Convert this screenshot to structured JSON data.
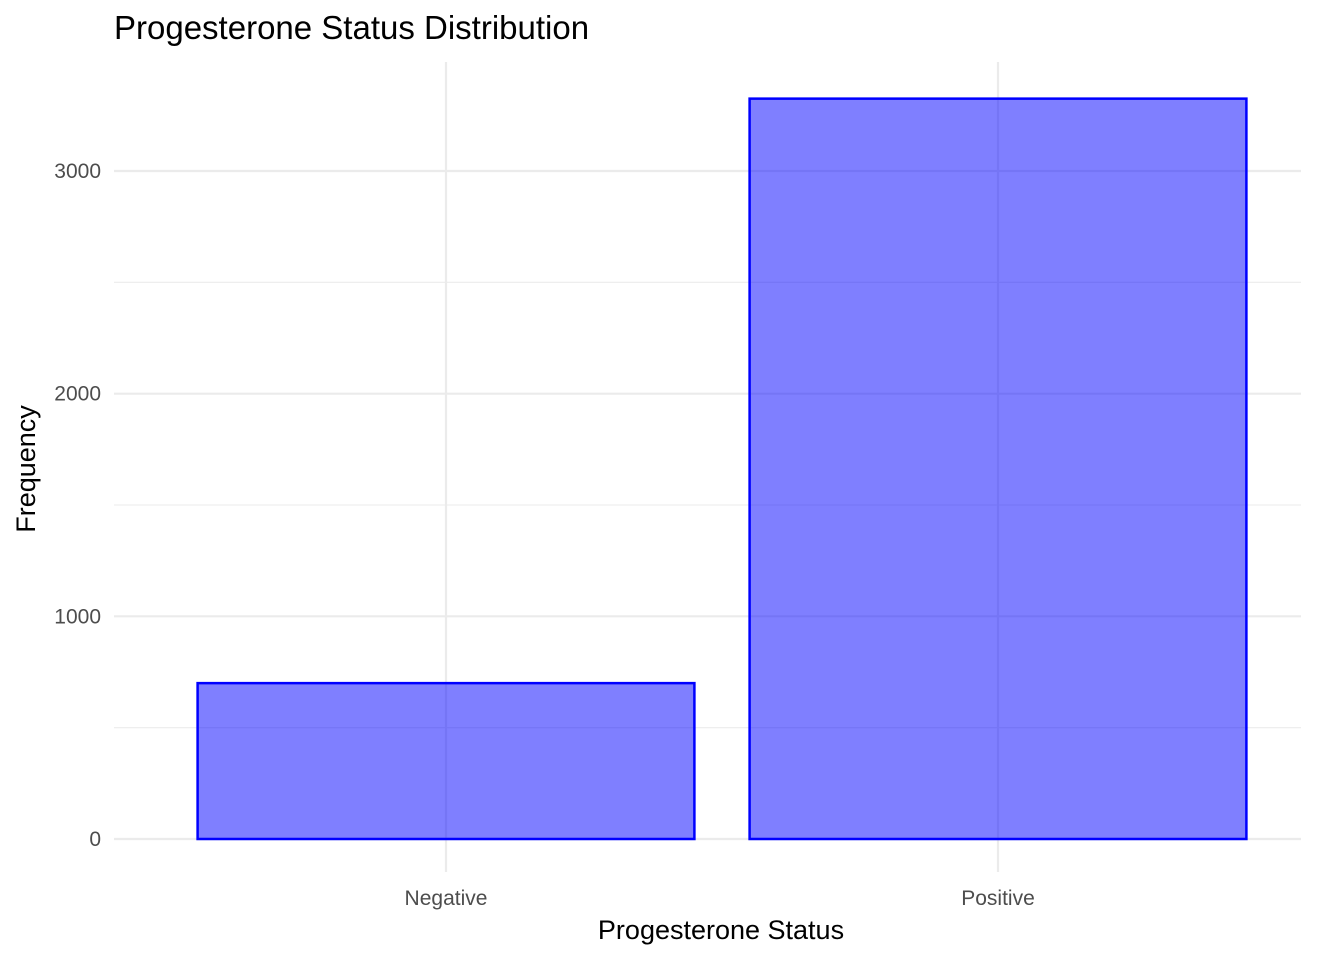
{
  "chart_data": {
    "type": "bar",
    "title": "Progesterone Status Distribution",
    "xlabel": "Progesterone Status",
    "ylabel": "Frequency",
    "categories": [
      "Negative",
      "Positive"
    ],
    "values": [
      700,
      3325
    ],
    "ylim": [
      0,
      3490
    ],
    "y_ticks": [
      0,
      1000,
      2000,
      3000
    ],
    "y_tick_labels": [
      "0",
      "1000",
      "2000",
      "3000"
    ],
    "y_minor_ticks": [
      500,
      1500,
      2500
    ],
    "grid": true,
    "legend": "none",
    "colors": {
      "bar_fill": "#0000ff",
      "bar_fill_opacity": 0.5,
      "bar_outline": "#0000ff",
      "grid": "#ebebeb",
      "tick_text": "#4d4d4d",
      "text": "#000000",
      "background": "#ffffff"
    }
  }
}
